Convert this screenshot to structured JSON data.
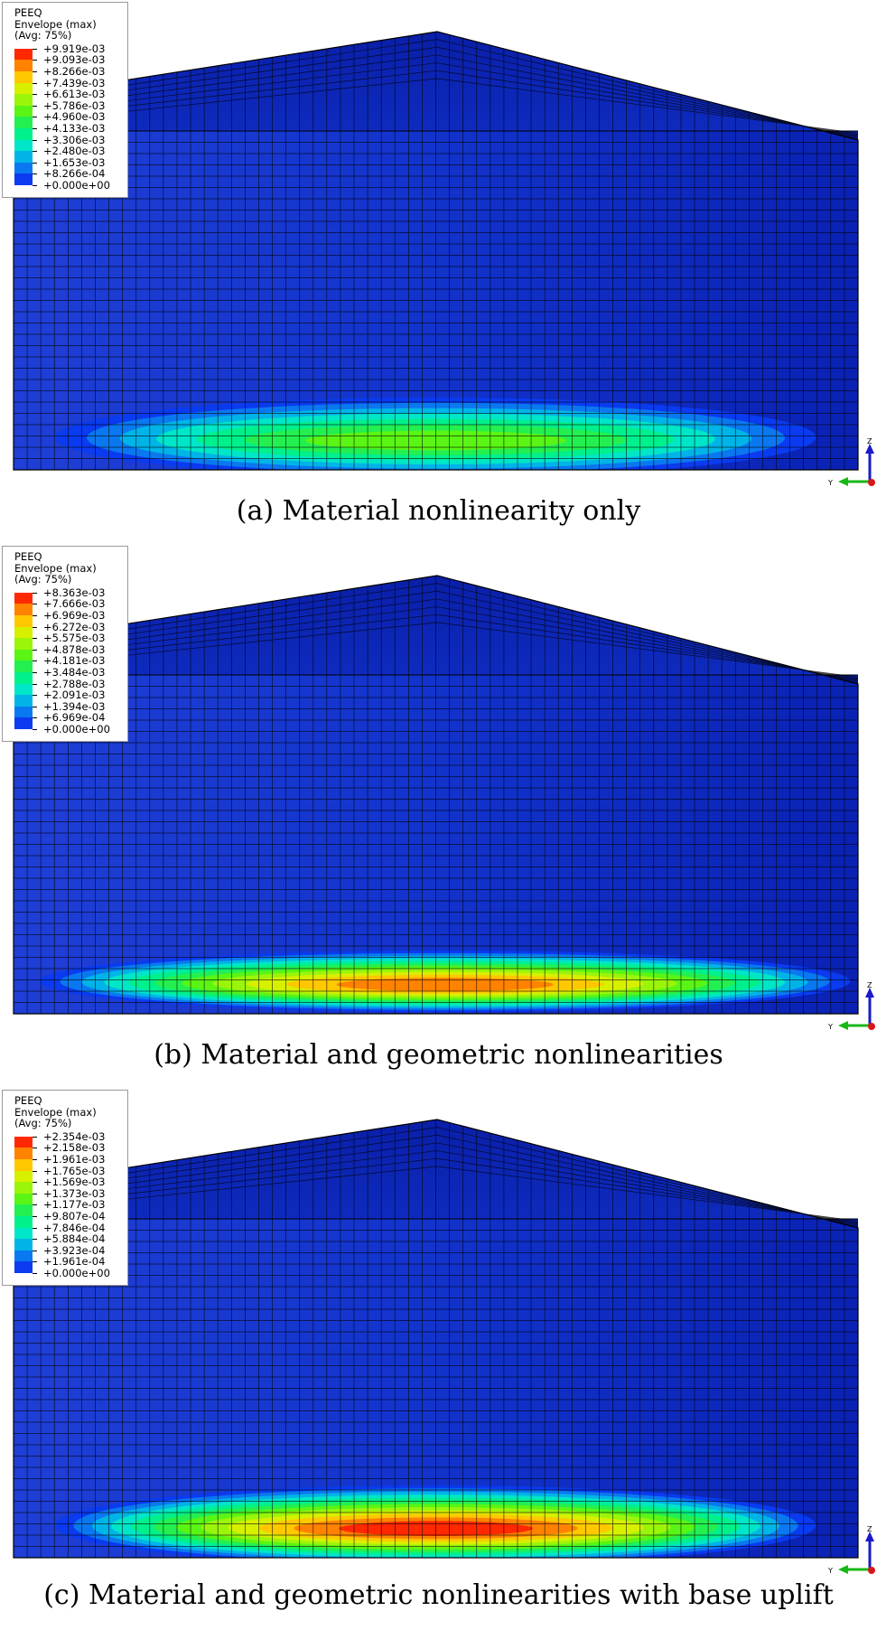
{
  "colors": {
    "contour": [
      "#0000f5",
      "#0a3bf0",
      "#0a78f0",
      "#00b4e8",
      "#00e6c8",
      "#00f08c",
      "#23f050",
      "#5af514",
      "#9bf50a",
      "#d7f000",
      "#ffc800",
      "#ff8200",
      "#ff2800"
    ],
    "mesh_body": "#0d2fc4",
    "mesh_line": "#000000",
    "triad_z": "#1a1ac8",
    "triad_y": "#18b818",
    "triad_x": "#d81818"
  },
  "axes": {
    "z": "Z",
    "y": "Y"
  },
  "panels": [
    {
      "id": "a",
      "caption": "(a) Material nonlinearity only",
      "legend": {
        "variable": "PEEQ",
        "envelope": "Envelope (max)",
        "averaging": "(Avg: 75%)",
        "levels": [
          "+9.919e-03",
          "+9.093e-03",
          "+8.266e-03",
          "+7.439e-03",
          "+6.613e-03",
          "+5.786e-03",
          "+4.960e-03",
          "+4.133e-03",
          "+3.306e-03",
          "+2.480e-03",
          "+1.653e-03",
          "+8.266e-04",
          "+0.000e+00"
        ]
      },
      "peak_level": 0.55,
      "band_extent": 0.9
    },
    {
      "id": "b",
      "caption": "(b) Material and geometric nonlinearities",
      "legend": {
        "variable": "PEEQ",
        "envelope": "Envelope (max)",
        "averaging": "(Avg: 75%)",
        "levels": [
          "+8.363e-03",
          "+7.666e-03",
          "+6.969e-03",
          "+6.272e-03",
          "+5.575e-03",
          "+4.878e-03",
          "+4.181e-03",
          "+3.484e-03",
          "+2.788e-03",
          "+2.091e-03",
          "+1.394e-03",
          "+6.969e-04",
          "+0.000e+00"
        ]
      },
      "peak_level": 0.9,
      "band_extent": 0.96
    },
    {
      "id": "c",
      "caption": "(c) Material and geometric nonlinearities with base uplift",
      "legend": {
        "variable": "PEEQ",
        "envelope": "Envelope (max)",
        "averaging": "(Avg: 75%)",
        "levels": [
          "+2.354e-03",
          "+2.158e-03",
          "+1.961e-03",
          "+1.765e-03",
          "+1.569e-03",
          "+1.373e-03",
          "+1.177e-03",
          "+9.807e-04",
          "+7.846e-04",
          "+5.884e-04",
          "+3.923e-04",
          "+1.961e-04",
          "+0.000e+00"
        ]
      },
      "peak_level": 1.0,
      "band_extent": 0.9
    }
  ]
}
